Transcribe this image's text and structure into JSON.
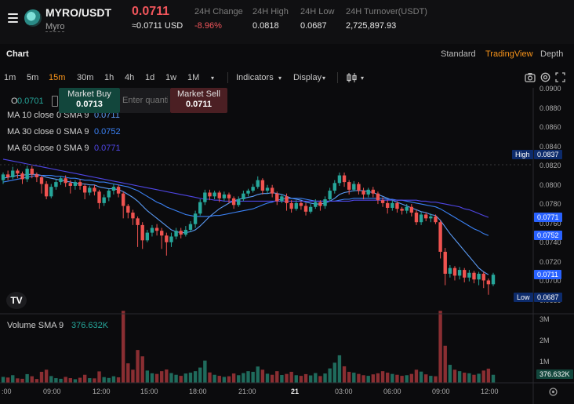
{
  "header": {
    "pair": "MYRO/USDT",
    "coin_name": "Myro",
    "price": "0.0711",
    "price_usd": "≈0.0711 USD",
    "stats": [
      {
        "label": "24H Change",
        "value": "-8.96%"
      },
      {
        "label": "24H High",
        "value": "0.0818"
      },
      {
        "label": "24H Low",
        "value": "0.0687"
      },
      {
        "label": "24H Turnover(USDT)",
        "value": "2,725,897.93"
      }
    ]
  },
  "tabs": {
    "chart_label": "Chart",
    "views": [
      "Standard",
      "TradingView",
      "Depth"
    ],
    "active_view": "TradingView"
  },
  "toolbar": {
    "timeframes": [
      "1m",
      "5m",
      "15m",
      "30m",
      "1h",
      "4h",
      "1d",
      "1w",
      "1M"
    ],
    "active_timeframe": "15m",
    "more_caret": "▾",
    "indicators": "Indicators",
    "display": "Display",
    "chart_type_icon": "candles-icon"
  },
  "legend": {
    "open_label": "O",
    "open_value": "0.0701",
    "ma": [
      {
        "label": "MA 10 close 0 SMA 9",
        "value": "0.0711",
        "color": "#5b9cf6"
      },
      {
        "label": "MA 30 close 0 SMA 9",
        "value": "0.0752",
        "color": "#3b82f6"
      },
      {
        "label": "MA 60 close 0 SMA 9",
        "value": "0.0771",
        "color": "#4f46e5"
      }
    ],
    "volume_label": "Volume SMA 9",
    "volume_value": "376.632K"
  },
  "order": {
    "buy_label": "Market Buy",
    "buy_price": "0.0713",
    "qty_placeholder": "Enter quantity",
    "sell_label": "Market Sell",
    "sell_price": "0.0711"
  },
  "price_axis": {
    "ticks": [
      "0.0900",
      "0.0880",
      "0.0860",
      "0.0840",
      "0.0820",
      "0.0800",
      "0.0780",
      "0.0760",
      "0.0740",
      "0.0720",
      "0.0700",
      "0.0680"
    ],
    "tags": [
      {
        "label": "High",
        "value": "0.0837"
      },
      {
        "label": "",
        "value": "0.0771"
      },
      {
        "label": "",
        "value": "0.0752"
      },
      {
        "label": "",
        "value": "0.0711"
      },
      {
        "label": "Low",
        "value": "0.0687"
      }
    ]
  },
  "volume_axis": {
    "ticks": [
      "3M",
      "2M",
      "1M"
    ],
    "tag": "376.632K"
  },
  "time_axis": {
    "ticks": [
      ":00",
      "09:00",
      "12:00",
      "15:00",
      "18:00",
      "21:00",
      "21",
      "03:00",
      "06:00",
      "09:00",
      "12:00"
    ]
  },
  "colors": {
    "up": "#26a69a",
    "down": "#ef5350",
    "accent": "#f7931a",
    "tag_blue": "#2962ff",
    "tag_dark": "#0d2b6b"
  },
  "chart_data": {
    "type": "candlestick",
    "interval": "15m",
    "y_range": [
      0.0675,
      0.0905
    ],
    "candles": [
      [
        0.081,
        0.0816,
        0.0806,
        0.0818
      ],
      [
        0.0816,
        0.0813,
        0.081,
        0.082
      ],
      [
        0.0813,
        0.082,
        0.0811,
        0.0824
      ],
      [
        0.082,
        0.0817,
        0.0812,
        0.0822
      ],
      [
        0.0817,
        0.0811,
        0.0806,
        0.0819
      ],
      [
        0.0811,
        0.0822,
        0.0808,
        0.0825
      ],
      [
        0.0822,
        0.0816,
        0.0812,
        0.0825
      ],
      [
        0.0816,
        0.0813,
        0.0808,
        0.0818
      ],
      [
        0.0813,
        0.0806,
        0.0796,
        0.0815
      ],
      [
        0.0806,
        0.0793,
        0.079,
        0.0809
      ],
      [
        0.0793,
        0.0803,
        0.0791,
        0.0806
      ],
      [
        0.0803,
        0.0808,
        0.08,
        0.0811
      ],
      [
        0.0808,
        0.0812,
        0.0805,
        0.0814
      ],
      [
        0.0812,
        0.0807,
        0.0803,
        0.0815
      ],
      [
        0.0807,
        0.0804,
        0.0796,
        0.081
      ],
      [
        0.0804,
        0.0808,
        0.08,
        0.081
      ],
      [
        0.0808,
        0.0804,
        0.08,
        0.0811
      ],
      [
        0.0804,
        0.0797,
        0.079,
        0.0806
      ],
      [
        0.0797,
        0.0802,
        0.0794,
        0.0804
      ],
      [
        0.0802,
        0.0798,
        0.0794,
        0.0805
      ],
      [
        0.0798,
        0.0786,
        0.078,
        0.08
      ],
      [
        0.0786,
        0.0792,
        0.0783,
        0.0795
      ],
      [
        0.0792,
        0.0799,
        0.0788,
        0.0801
      ],
      [
        0.0799,
        0.0803,
        0.0795,
        0.0806
      ],
      [
        0.0803,
        0.0796,
        0.0792,
        0.0805
      ],
      [
        0.0796,
        0.0783,
        0.077,
        0.0798
      ],
      [
        0.0783,
        0.0776,
        0.077,
        0.0785
      ],
      [
        0.0776,
        0.077,
        0.0763,
        0.0779
      ],
      [
        0.077,
        0.0763,
        0.074,
        0.0772
      ],
      [
        0.0763,
        0.0747,
        0.0738,
        0.0766
      ],
      [
        0.0747,
        0.0755,
        0.0745,
        0.0758
      ],
      [
        0.0755,
        0.076,
        0.0751,
        0.0763
      ],
      [
        0.076,
        0.0757,
        0.0752,
        0.0764
      ],
      [
        0.0757,
        0.0752,
        0.0738,
        0.076
      ],
      [
        0.0752,
        0.0745,
        0.0731,
        0.0755
      ],
      [
        0.0745,
        0.0751,
        0.074,
        0.0755
      ],
      [
        0.0751,
        0.0757,
        0.0748,
        0.076
      ],
      [
        0.0757,
        0.0753,
        0.0749,
        0.076
      ],
      [
        0.0753,
        0.0758,
        0.0751,
        0.0762
      ],
      [
        0.0758,
        0.0764,
        0.0756,
        0.0767
      ],
      [
        0.0764,
        0.0775,
        0.076,
        0.0778
      ],
      [
        0.0775,
        0.0787,
        0.0773,
        0.079
      ],
      [
        0.0787,
        0.0797,
        0.0784,
        0.08
      ],
      [
        0.0797,
        0.0793,
        0.0789,
        0.08
      ],
      [
        0.0793,
        0.0797,
        0.079,
        0.0799
      ],
      [
        0.0797,
        0.0791,
        0.0787,
        0.0799
      ],
      [
        0.0791,
        0.0795,
        0.0788,
        0.0798
      ],
      [
        0.0795,
        0.0791,
        0.0786,
        0.0797
      ],
      [
        0.0791,
        0.0784,
        0.078,
        0.0793
      ],
      [
        0.0784,
        0.079,
        0.0782,
        0.0793
      ],
      [
        0.079,
        0.0796,
        0.0788,
        0.0799
      ],
      [
        0.0796,
        0.0799,
        0.0793,
        0.0801
      ],
      [
        0.0799,
        0.0803,
        0.0797,
        0.0806
      ],
      [
        0.0803,
        0.081,
        0.0801,
        0.0814
      ],
      [
        0.081,
        0.0799,
        0.0795,
        0.0812
      ],
      [
        0.0799,
        0.0802,
        0.0796,
        0.0805
      ],
      [
        0.0802,
        0.0796,
        0.0792,
        0.0805
      ],
      [
        0.0796,
        0.0788,
        0.0784,
        0.0798
      ],
      [
        0.0788,
        0.0793,
        0.0786,
        0.0795
      ],
      [
        0.0793,
        0.0786,
        0.0778,
        0.0796
      ],
      [
        0.0786,
        0.078,
        0.0776,
        0.0789
      ],
      [
        0.078,
        0.0786,
        0.0778,
        0.0789
      ],
      [
        0.0786,
        0.0783,
        0.0779,
        0.0788
      ],
      [
        0.0783,
        0.0777,
        0.0773,
        0.0786
      ],
      [
        0.0777,
        0.0782,
        0.0775,
        0.0785
      ],
      [
        0.0782,
        0.0787,
        0.078,
        0.079
      ],
      [
        0.0787,
        0.0783,
        0.0778,
        0.0789
      ],
      [
        0.0783,
        0.079,
        0.078,
        0.0793
      ],
      [
        0.079,
        0.0799,
        0.0788,
        0.0802
      ],
      [
        0.0799,
        0.0807,
        0.0796,
        0.081
      ],
      [
        0.0807,
        0.0815,
        0.0804,
        0.0818
      ],
      [
        0.0815,
        0.0808,
        0.0803,
        0.0818
      ],
      [
        0.0808,
        0.08,
        0.0795,
        0.081
      ],
      [
        0.08,
        0.0806,
        0.0798,
        0.0809
      ],
      [
        0.0806,
        0.0799,
        0.0795,
        0.0808
      ],
      [
        0.0799,
        0.0795,
        0.079,
        0.0802
      ],
      [
        0.0795,
        0.08,
        0.0792,
        0.0802
      ],
      [
        0.08,
        0.0796,
        0.0792,
        0.0803
      ],
      [
        0.0796,
        0.0789,
        0.0785,
        0.0798
      ],
      [
        0.0789,
        0.0786,
        0.0782,
        0.0792
      ],
      [
        0.0786,
        0.0781,
        0.0775,
        0.0789
      ],
      [
        0.0781,
        0.0786,
        0.0778,
        0.0789
      ],
      [
        0.0786,
        0.078,
        0.0776,
        0.0788
      ],
      [
        0.078,
        0.0778,
        0.0774,
        0.0782
      ],
      [
        0.0778,
        0.0782,
        0.0775,
        0.0785
      ],
      [
        0.0782,
        0.0776,
        0.0772,
        0.0785
      ],
      [
        0.0776,
        0.0766,
        0.0763,
        0.0779
      ],
      [
        0.0766,
        0.0774,
        0.0763,
        0.0777
      ],
      [
        0.0774,
        0.077,
        0.0767,
        0.0776
      ],
      [
        0.077,
        0.0772,
        0.0766,
        0.0775
      ],
      [
        0.0772,
        0.0766,
        0.0764,
        0.0774
      ],
      [
        0.0766,
        0.0735,
        0.0728,
        0.0768
      ],
      [
        0.0735,
        0.0712,
        0.07,
        0.0739
      ],
      [
        0.0712,
        0.0718,
        0.0708,
        0.0721
      ],
      [
        0.0718,
        0.071,
        0.0705,
        0.072
      ],
      [
        0.071,
        0.0716,
        0.0706,
        0.0719
      ],
      [
        0.0716,
        0.0708,
        0.0703,
        0.0718
      ],
      [
        0.0708,
        0.0713,
        0.0704,
        0.0716
      ],
      [
        0.0713,
        0.0706,
        0.0702,
        0.0715
      ],
      [
        0.0706,
        0.0712,
        0.07,
        0.0714
      ],
      [
        0.0712,
        0.0705,
        0.0697,
        0.0714
      ],
      [
        0.0705,
        0.0701,
        0.069,
        0.0707
      ],
      [
        0.0701,
        0.0711,
        0.0699,
        0.0713
      ]
    ],
    "volumes_m": [
      0.28,
      0.25,
      0.36,
      0.21,
      0.19,
      0.41,
      0.31,
      0.18,
      0.52,
      0.62,
      0.32,
      0.22,
      0.19,
      0.28,
      0.22,
      0.17,
      0.24,
      0.38,
      0.22,
      0.21,
      0.54,
      0.27,
      0.23,
      0.31,
      0.26,
      3.4,
      0.92,
      0.62,
      1.55,
      1.25,
      0.58,
      0.45,
      0.42,
      0.55,
      0.63,
      0.46,
      0.38,
      0.33,
      0.44,
      0.48,
      0.55,
      0.72,
      1.05,
      0.49,
      0.38,
      0.33,
      0.28,
      0.31,
      0.44,
      0.36,
      0.46,
      0.55,
      0.52,
      0.77,
      0.62,
      0.43,
      0.38,
      0.55,
      0.37,
      0.42,
      0.52,
      0.36,
      0.33,
      0.41,
      0.35,
      0.46,
      0.32,
      0.44,
      0.68,
      0.95,
      1.3,
      0.78,
      0.52,
      0.48,
      0.42,
      0.36,
      0.33,
      0.4,
      0.45,
      0.55,
      0.48,
      0.42,
      0.38,
      0.33,
      0.36,
      0.42,
      0.62,
      0.53,
      0.4,
      0.33,
      0.31,
      3.4,
      1.75,
      0.85,
      0.62,
      0.55,
      0.48,
      0.45,
      0.38,
      0.43,
      0.58,
      0.67,
      0.38
    ],
    "ma10": [
      0.0812,
      0.0813,
      0.0814,
      0.0815,
      0.0815,
      0.0816,
      0.0816,
      0.0816,
      0.0815,
      0.0813,
      0.0812,
      0.0811,
      0.081,
      0.0809,
      0.0808,
      0.0807,
      0.0806,
      0.0806,
      0.0805,
      0.0805,
      0.0803,
      0.0802,
      0.0801,
      0.0801,
      0.08,
      0.0798,
      0.0795,
      0.0792,
      0.0788,
      0.0783,
      0.0778,
      0.0774,
      0.077,
      0.0766,
      0.0762,
      0.0758,
      0.0756,
      0.0755,
      0.0755,
      0.0756,
      0.0758,
      0.0762,
      0.0767,
      0.0772,
      0.0776,
      0.078,
      0.0783,
      0.0786,
      0.0788,
      0.079,
      0.0791,
      0.0792,
      0.0793,
      0.0795,
      0.0796,
      0.0796,
      0.0797,
      0.0796,
      0.0795,
      0.0793,
      0.0791,
      0.079,
      0.0789,
      0.0787,
      0.0786,
      0.0785,
      0.0785,
      0.0786,
      0.0788,
      0.0791,
      0.0795,
      0.0797,
      0.0798,
      0.0799,
      0.0799,
      0.0799,
      0.0798,
      0.0797,
      0.0795,
      0.0793,
      0.0791,
      0.0789,
      0.0787,
      0.0785,
      0.0783,
      0.0781,
      0.0779,
      0.0777,
      0.0776,
      0.0774,
      0.0773,
      0.0768,
      0.0761,
      0.0754,
      0.0748,
      0.0742,
      0.0736,
      0.073,
      0.0724,
      0.0718,
      0.0714,
      0.0711
    ],
    "ma30": [
      0.0808,
      0.0809,
      0.081,
      0.0811,
      0.0812,
      0.0813,
      0.0814,
      0.0815,
      0.0815,
      0.0815,
      0.0815,
      0.0814,
      0.0814,
      0.0813,
      0.0812,
      0.0812,
      0.0811,
      0.081,
      0.081,
      0.0809,
      0.0808,
      0.0808,
      0.0807,
      0.0806,
      0.0805,
      0.0804,
      0.0803,
      0.0801,
      0.0799,
      0.0796,
      0.0793,
      0.079,
      0.0787,
      0.0785,
      0.0782,
      0.078,
      0.0778,
      0.0776,
      0.0774,
      0.0773,
      0.0772,
      0.0772,
      0.0772,
      0.0772,
      0.0773,
      0.0773,
      0.0774,
      0.0775,
      0.0776,
      0.0777,
      0.0778,
      0.0779,
      0.078,
      0.0782,
      0.0784,
      0.0786,
      0.0787,
      0.0789,
      0.079,
      0.0791,
      0.0791,
      0.0791,
      0.0791,
      0.079,
      0.0789,
      0.0788,
      0.0788,
      0.0788,
      0.0788,
      0.0788,
      0.0789,
      0.079,
      0.079,
      0.0791,
      0.0791,
      0.0791,
      0.0791,
      0.0791,
      0.0791,
      0.0791,
      0.079,
      0.079,
      0.0789,
      0.0789,
      0.0788,
      0.0787,
      0.0786,
      0.0785,
      0.0784,
      0.0783,
      0.0782,
      0.078,
      0.0777,
      0.0774,
      0.0771,
      0.0768,
      0.0765,
      0.0762,
      0.0759,
      0.0757,
      0.0754,
      0.0752
    ],
    "ma60": [
      0.0832,
      0.0831,
      0.083,
      0.0829,
      0.0828,
      0.0827,
      0.0826,
      0.0825,
      0.0824,
      0.0823,
      0.0822,
      0.0821,
      0.082,
      0.0819,
      0.0818,
      0.0817,
      0.0816,
      0.0815,
      0.0814,
      0.0813,
      0.0812,
      0.0811,
      0.081,
      0.0809,
      0.0808,
      0.0807,
      0.0806,
      0.0805,
      0.0804,
      0.0803,
      0.0802,
      0.0801,
      0.08,
      0.0799,
      0.0798,
      0.0797,
      0.0796,
      0.0795,
      0.0794,
      0.0793,
      0.0792,
      0.0791,
      0.079,
      0.079,
      0.0789,
      0.0789,
      0.0788,
      0.0788,
      0.0788,
      0.0788,
      0.0788,
      0.0788,
      0.0788,
      0.0788,
      0.0788,
      0.0788,
      0.0788,
      0.0788,
      0.0788,
      0.0788,
      0.0788,
      0.0788,
      0.0788,
      0.0788,
      0.0788,
      0.0788,
      0.0788,
      0.0788,
      0.0788,
      0.0788,
      0.0788,
      0.0788,
      0.0788,
      0.0789,
      0.0789,
      0.0789,
      0.0789,
      0.0789,
      0.0789,
      0.0789,
      0.0789,
      0.0789,
      0.0789,
      0.0789,
      0.0789,
      0.0789,
      0.0789,
      0.0788,
      0.0788,
      0.0787,
      0.0787,
      0.0786,
      0.0785,
      0.0784,
      0.0783,
      0.0782,
      0.078,
      0.0779,
      0.0777,
      0.0775,
      0.0773,
      0.0771
    ]
  }
}
